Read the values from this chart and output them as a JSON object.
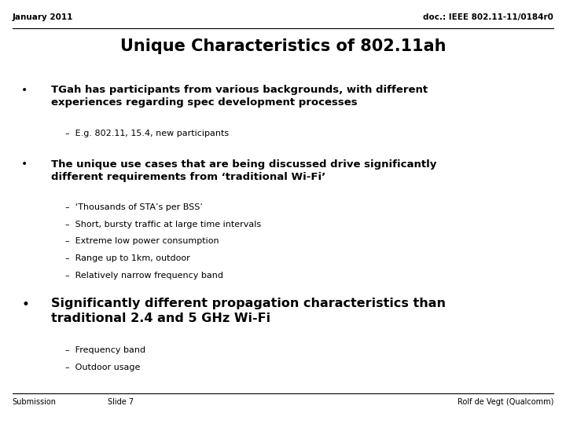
{
  "bg_color": "#ffffff",
  "header_left": "January 2011",
  "header_right": "doc.: IEEE 802.11-11/0184r0",
  "title": "Unique Characteristics of 802.11ah",
  "footer_left": "Submission",
  "footer_center": "Slide 7",
  "footer_right": "Rolf de Vegt (Qualcomm)",
  "bullet1_text": "TGah has participants from various backgrounds, with different\nexperiences regarding spec development processes",
  "bullet1_sub": [
    "E.g. 802.11, 15.4, new participants"
  ],
  "bullet2_text": "The unique use cases that are being discussed drive significantly\ndifferent requirements from ‘traditional Wi-Fi’",
  "bullet2_sub": [
    "‘Thousands of STA’s per BSS’",
    "Short, bursty traffic at large time intervals",
    "Extreme low power consumption",
    "Range up to 1km, outdoor",
    "Relatively narrow frequency band"
  ],
  "bullet3_text": "Significantly different propagation characteristics than\ntraditional 2.4 and 5 GHz Wi-Fi",
  "bullet3_sub": [
    "Frequency band",
    "Outdoor usage"
  ],
  "header_fontsize": 7.5,
  "title_fontsize": 15,
  "bullet_marker_size": 10,
  "main_fontsize": 9.5,
  "sub_fontsize": 8.0,
  "footer_fontsize": 7.0
}
